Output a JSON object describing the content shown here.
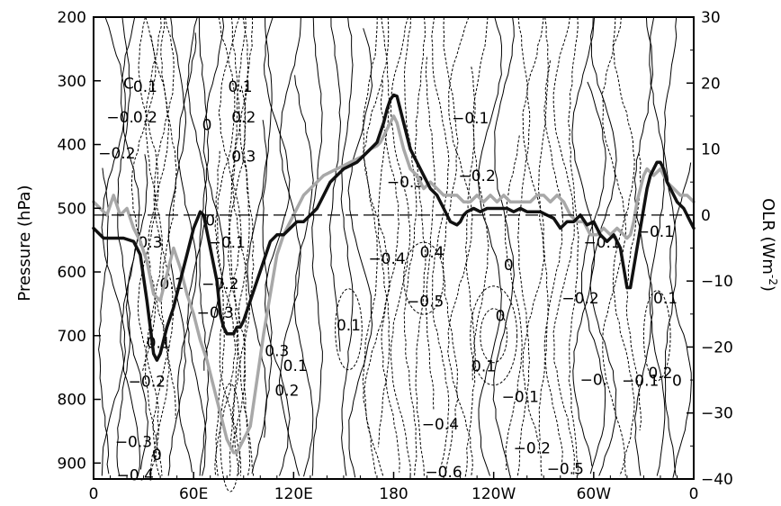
{
  "chart_data": {
    "type": "line",
    "title": "",
    "xlabel": "",
    "ylabel": "Pressure (hPa)",
    "y2label": "OLR (Wm-2)",
    "y2label_main": "OLR (Wm",
    "y2label_sup": "-2",
    "y2label_end": ")",
    "x_ticks": [
      {
        "lon": 0,
        "label": "0"
      },
      {
        "lon": 60,
        "label": "60E"
      },
      {
        "lon": 120,
        "label": "120E"
      },
      {
        "lon": 180,
        "label": "180"
      },
      {
        "lon": 240,
        "label": "120W"
      },
      {
        "lon": 300,
        "label": "60W"
      },
      {
        "lon": 360,
        "label": "0"
      }
    ],
    "y_ticks": [
      {
        "p": 200,
        "label": "200"
      },
      {
        "p": 300,
        "label": "300"
      },
      {
        "p": 400,
        "label": "400"
      },
      {
        "p": 500,
        "label": "500"
      },
      {
        "p": 600,
        "label": "600"
      },
      {
        "p": 700,
        "label": "700"
      },
      {
        "p": 800,
        "label": "800"
      },
      {
        "p": 900,
        "label": "900"
      }
    ],
    "y2_ticks": [
      {
        "v": 30,
        "label": "30"
      },
      {
        "v": 20,
        "label": "20"
      },
      {
        "v": 10,
        "label": "10"
      },
      {
        "v": 0,
        "label": "0"
      },
      {
        "v": -10,
        "label": "−10"
      },
      {
        "v": -20,
        "label": "−20"
      },
      {
        "v": -30,
        "label": "−30"
      },
      {
        "v": -40,
        "label": "−40"
      }
    ],
    "xlim": [
      0,
      360
    ],
    "ylim": [
      200,
      925
    ],
    "y2lim": [
      -40,
      30
    ],
    "zero_line_olr": 0,
    "series": [
      {
        "role": "black",
        "color": "#111111",
        "x": [
          0,
          6,
          12,
          18,
          24,
          28,
          32,
          36,
          38,
          40,
          42,
          44,
          48,
          52,
          56,
          60,
          64,
          66,
          70,
          74,
          76,
          78,
          80,
          82,
          84,
          86,
          88,
          90,
          94,
          98,
          102,
          106,
          110,
          114,
          118,
          122,
          126,
          130,
          134,
          138,
          142,
          146,
          150,
          154,
          158,
          162,
          166,
          170,
          174,
          176,
          178,
          180,
          182,
          184,
          186,
          188,
          190,
          194,
          198,
          202,
          206,
          210,
          214,
          218,
          220,
          222,
          224,
          228,
          232,
          236,
          240,
          244,
          248,
          252,
          256,
          260,
          264,
          268,
          272,
          276,
          280,
          284,
          288,
          292,
          296,
          300,
          304,
          308,
          312,
          316,
          318,
          320,
          322,
          324,
          326,
          328,
          330,
          332,
          334,
          336,
          338,
          340,
          342,
          344,
          346,
          350,
          354,
          358,
          360
        ],
        "y": [
          -2,
          -3.5,
          -3.5,
          -3.5,
          -4,
          -6,
          -13,
          -21,
          -22,
          -21,
          -19,
          -17,
          -14,
          -10,
          -6,
          -2,
          0.5,
          0,
          -5,
          -10,
          -15,
          -17,
          -18,
          -18,
          -18,
          -17,
          -17,
          -16,
          -13,
          -10,
          -7,
          -4,
          -3,
          -3,
          -2,
          -1,
          -1,
          0,
          1,
          3,
          5,
          6,
          7,
          7.5,
          8,
          9,
          10,
          11,
          14,
          16,
          17.5,
          18.2,
          18,
          16,
          14,
          12,
          10,
          8,
          6,
          4,
          3,
          1,
          -1,
          -1.5,
          -1,
          0,
          0.5,
          1,
          0.5,
          1,
          1,
          1,
          1,
          0.5,
          1,
          0.5,
          0.5,
          0.5,
          0,
          -0.5,
          -2,
          -1,
          -1,
          0,
          -1.5,
          -1,
          -3,
          -4,
          -3,
          -5,
          -8,
          -11,
          -11,
          -8,
          -5,
          -2,
          1,
          4,
          6,
          7,
          8,
          8,
          7,
          5,
          4,
          2,
          1,
          -1,
          -2
        ]
      },
      {
        "role": "gray",
        "color": "#a8a8a8",
        "x": [
          0,
          4,
          8,
          12,
          16,
          20,
          24,
          28,
          32,
          36,
          40,
          44,
          48,
          52,
          56,
          60,
          64,
          68,
          72,
          76,
          80,
          82,
          84,
          86,
          88,
          90,
          94,
          98,
          102,
          106,
          110,
          114,
          118,
          122,
          126,
          130,
          134,
          138,
          142,
          146,
          150,
          154,
          158,
          162,
          166,
          170,
          172,
          174,
          176,
          178,
          180,
          182,
          184,
          186,
          190,
          194,
          198,
          202,
          206,
          210,
          214,
          218,
          222,
          226,
          230,
          234,
          238,
          242,
          246,
          250,
          254,
          258,
          262,
          266,
          270,
          274,
          278,
          282,
          286,
          290,
          294,
          298,
          302,
          306,
          310,
          314,
          318,
          320,
          322,
          324,
          326,
          328,
          330,
          332,
          336,
          340,
          344,
          348,
          352,
          356,
          360
        ],
        "y": [
          2,
          1,
          0,
          3,
          0,
          1,
          -2,
          -4,
          -7,
          -12,
          -13,
          -9,
          -5,
          -8,
          -12,
          -15,
          -19,
          -22,
          -26,
          -30,
          -34,
          -35,
          -36,
          -36,
          -35,
          -34,
          -32,
          -25,
          -18,
          -12,
          -6,
          -3,
          -1,
          1,
          3,
          4,
          5,
          6,
          6.5,
          7,
          7.5,
          8,
          8.5,
          9,
          10,
          10.5,
          11,
          12,
          13,
          14,
          15,
          14,
          12,
          10,
          7,
          6,
          4,
          5,
          4,
          3,
          3,
          3,
          2,
          2,
          3,
          2,
          3,
          2,
          3,
          2,
          2,
          2,
          2,
          3,
          3,
          2,
          3,
          2,
          0,
          -1,
          -1,
          -3,
          -3,
          -2,
          -3,
          -2,
          -3,
          -3.5,
          -3,
          -1,
          2,
          4,
          6,
          7,
          6,
          7,
          5,
          4,
          3,
          3,
          2
        ]
      }
    ],
    "contour_labels": [
      {
        "lon": 21,
        "p": 305,
        "text": "C"
      },
      {
        "lon": 31,
        "p": 310,
        "text": "0.1"
      },
      {
        "lon": 88,
        "p": 310,
        "text": "0.1"
      },
      {
        "lon": 16,
        "p": 358,
        "text": "−0."
      },
      {
        "lon": 31,
        "p": 358,
        "text": "0.2"
      },
      {
        "lon": 68,
        "p": 370,
        "text": "0"
      },
      {
        "lon": 90,
        "p": 358,
        "text": "0.2"
      },
      {
        "lon": 226,
        "p": 360,
        "text": "−0.1"
      },
      {
        "lon": 14,
        "p": 415,
        "text": "−0.2"
      },
      {
        "lon": 90,
        "p": 420,
        "text": "0.3"
      },
      {
        "lon": 187,
        "p": 460,
        "text": "−0.3"
      },
      {
        "lon": 230,
        "p": 450,
        "text": "−0.2"
      },
      {
        "lon": 34,
        "p": 555,
        "text": "0.3"
      },
      {
        "lon": 70,
        "p": 520,
        "text": "0"
      },
      {
        "lon": 80,
        "p": 555,
        "text": "−0.1"
      },
      {
        "lon": 176,
        "p": 580,
        "text": "−0.4"
      },
      {
        "lon": 203,
        "p": 570,
        "text": "0.4"
      },
      {
        "lon": 249,
        "p": 590,
        "text": "0"
      },
      {
        "lon": 337,
        "p": 538,
        "text": "−0.1"
      },
      {
        "lon": 305,
        "p": 555,
        "text": "−0.1"
      },
      {
        "lon": 47,
        "p": 620,
        "text": "0.1"
      },
      {
        "lon": 76,
        "p": 620,
        "text": "−0.2"
      },
      {
        "lon": 199,
        "p": 647,
        "text": "−0.5"
      },
      {
        "lon": 292,
        "p": 642,
        "text": "−0.2"
      },
      {
        "lon": 343,
        "p": 642,
        "text": "0.1"
      },
      {
        "lon": 73,
        "p": 665,
        "text": "−0.3"
      },
      {
        "lon": 153,
        "p": 685,
        "text": "0.1"
      },
      {
        "lon": 244,
        "p": 670,
        "text": "0"
      },
      {
        "lon": 39,
        "p": 712,
        "text": "0.1"
      },
      {
        "lon": 110,
        "p": 725,
        "text": "0.3"
      },
      {
        "lon": 121,
        "p": 748,
        "text": "0.1"
      },
      {
        "lon": 234,
        "p": 749,
        "text": "0.1"
      },
      {
        "lon": 256,
        "p": 797,
        "text": "−0.1"
      },
      {
        "lon": 300,
        "p": 770,
        "text": "−0."
      },
      {
        "lon": 328,
        "p": 772,
        "text": "−0.1"
      },
      {
        "lon": 340,
        "p": 760,
        "text": "0.2"
      },
      {
        "lon": 350,
        "p": 772,
        "text": "0"
      },
      {
        "lon": 32,
        "p": 773,
        "text": "−0.2"
      },
      {
        "lon": 116,
        "p": 787,
        "text": "0.2"
      },
      {
        "lon": 208,
        "p": 840,
        "text": "−0.4"
      },
      {
        "lon": 24,
        "p": 868,
        "text": "−0.3"
      },
      {
        "lon": 263,
        "p": 878,
        "text": "−0.2"
      },
      {
        "lon": 38,
        "p": 888,
        "text": "0"
      },
      {
        "lon": 210,
        "p": 915,
        "text": "−0.6"
      },
      {
        "lon": 283,
        "p": 910,
        "text": "−0.5"
      },
      {
        "lon": 25,
        "p": 920,
        "text": "−0.4"
      }
    ]
  }
}
